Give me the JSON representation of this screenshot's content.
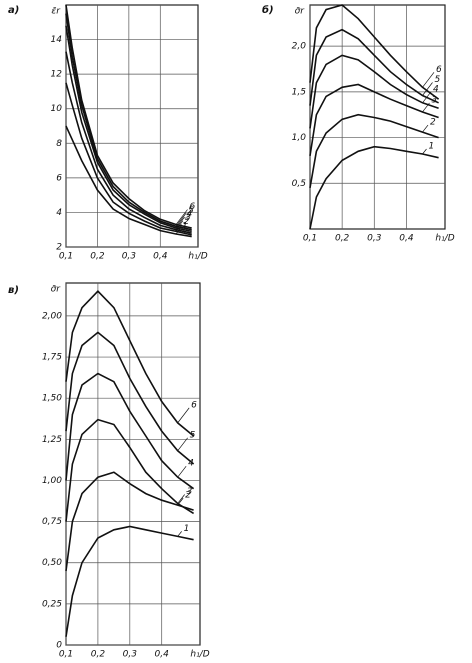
{
  "chart_data": [
    {
      "type": "line",
      "panel": "a)",
      "ylabel": "ε̄r",
      "xlabel": "h₁/D",
      "x": [
        0.1,
        0.12,
        0.15,
        0.2,
        0.25,
        0.3,
        0.35,
        0.4,
        0.45,
        0.5
      ],
      "xlim": [
        0.1,
        0.52
      ],
      "ylim": [
        2,
        16
      ],
      "grid": true,
      "xticks": [
        {
          "value": 0.1,
          "label": "0,1"
        },
        {
          "value": 0.2,
          "label": "0,2"
        },
        {
          "value": 0.3,
          "label": "0,3"
        },
        {
          "value": 0.4,
          "label": "0,4"
        }
      ],
      "yticks": [
        2,
        4,
        6,
        8,
        10,
        12,
        14
      ],
      "series": [
        {
          "name": "1",
          "color": "#111",
          "values": [
            9,
            8.2,
            7.0,
            5.3,
            4.2,
            3.65,
            3.3,
            2.95,
            2.75,
            2.6
          ]
        },
        {
          "name": "2",
          "color": "#111",
          "values": [
            11.5,
            10.2,
            8.3,
            6.0,
            4.6,
            3.95,
            3.5,
            3.1,
            2.9,
            2.7
          ]
        },
        {
          "name": "3",
          "color": "#111",
          "values": [
            13.3,
            11.5,
            9.2,
            6.5,
            5.0,
            4.2,
            3.7,
            3.25,
            3.0,
            2.8
          ]
        },
        {
          "name": "4",
          "color": "#111",
          "values": [
            14.8,
            12.5,
            9.8,
            6.9,
            5.3,
            4.45,
            3.9,
            3.4,
            3.1,
            2.9
          ]
        },
        {
          "name": "5",
          "color": "#111",
          "values": [
            15.5,
            13,
            10.2,
            7.1,
            5.5,
            4.6,
            4.0,
            3.5,
            3.2,
            3.0
          ]
        },
        {
          "name": "6",
          "color": "#111",
          "values": [
            16,
            13.5,
            10.5,
            7.3,
            5.7,
            4.8,
            4.1,
            3.6,
            3.3,
            3.1
          ]
        }
      ]
    },
    {
      "type": "line",
      "panel": "б)",
      "ylabel": "σ̄r",
      "xlabel": "h₁/D",
      "x": [
        0.1,
        0.12,
        0.15,
        0.2,
        0.25,
        0.3,
        0.35,
        0.4,
        0.45,
        0.5
      ],
      "xlim": [
        0.1,
        0.52
      ],
      "ylim": [
        0,
        2.45
      ],
      "grid": true,
      "xticks": [
        {
          "value": 0.1,
          "label": "0,1"
        },
        {
          "value": 0.2,
          "label": "0,2"
        },
        {
          "value": 0.3,
          "label": "0,3"
        },
        {
          "value": 0.4,
          "label": "0,4"
        }
      ],
      "yticks": [
        {
          "value": 0.5,
          "label": "0,5"
        },
        {
          "value": 1.0,
          "label": "1,0"
        },
        {
          "value": 1.5,
          "label": "1,5"
        },
        {
          "value": 2.0,
          "label": "2,0"
        }
      ],
      "series": [
        {
          "name": "1",
          "color": "#111",
          "values": [
            0.0,
            0.35,
            0.55,
            0.75,
            0.85,
            0.9,
            0.88,
            0.85,
            0.82,
            0.78
          ]
        },
        {
          "name": "2",
          "color": "#111",
          "values": [
            0.45,
            0.85,
            1.05,
            1.2,
            1.25,
            1.22,
            1.18,
            1.12,
            1.06,
            1.0
          ]
        },
        {
          "name": "3",
          "color": "#111",
          "values": [
            0.8,
            1.25,
            1.45,
            1.55,
            1.58,
            1.5,
            1.42,
            1.35,
            1.28,
            1.22
          ]
        },
        {
          "name": "4",
          "color": "#111",
          "values": [
            1.1,
            1.6,
            1.8,
            1.9,
            1.85,
            1.72,
            1.58,
            1.47,
            1.38,
            1.32
          ]
        },
        {
          "name": "5",
          "color": "#111",
          "values": [
            1.35,
            1.9,
            2.1,
            2.18,
            2.08,
            1.9,
            1.72,
            1.58,
            1.46,
            1.38
          ]
        },
        {
          "name": "6",
          "color": "#111",
          "values": [
            1.6,
            2.2,
            2.4,
            2.45,
            2.3,
            2.1,
            1.9,
            1.72,
            1.55,
            1.42
          ]
        }
      ]
    },
    {
      "type": "line",
      "panel": "в)",
      "ylabel": "σ̄r",
      "xlabel": "h₁/D",
      "x": [
        0.1,
        0.12,
        0.15,
        0.2,
        0.25,
        0.3,
        0.35,
        0.4,
        0.45,
        0.5
      ],
      "xlim": [
        0.1,
        0.52
      ],
      "ylim": [
        0,
        2.2
      ],
      "grid": true,
      "xticks": [
        {
          "value": 0.1,
          "label": "0,1"
        },
        {
          "value": 0.2,
          "label": "0,2"
        },
        {
          "value": 0.3,
          "label": "0,3"
        },
        {
          "value": 0.4,
          "label": "0,4"
        }
      ],
      "yticks": [
        0,
        {
          "value": 0.25,
          "label": "0,25"
        },
        {
          "value": 0.5,
          "label": "0,50"
        },
        {
          "value": 0.75,
          "label": "0,75"
        },
        {
          "value": 1.0,
          "label": "1,00"
        },
        {
          "value": 1.25,
          "label": "1,25"
        },
        {
          "value": 1.5,
          "label": "1,50"
        },
        {
          "value": 1.75,
          "label": "1,75"
        },
        {
          "value": 2.0,
          "label": "2,00"
        }
      ],
      "series": [
        {
          "name": "1",
          "color": "#111",
          "values": [
            0.05,
            0.3,
            0.5,
            0.65,
            0.7,
            0.72,
            0.7,
            0.68,
            0.66,
            0.64
          ]
        },
        {
          "name": "2",
          "color": "#111",
          "values": [
            0.45,
            0.75,
            0.92,
            1.02,
            1.05,
            0.98,
            0.92,
            0.88,
            0.85,
            0.82
          ]
        },
        {
          "name": "3",
          "color": "#111",
          "values": [
            0.75,
            1.1,
            1.28,
            1.37,
            1.34,
            1.2,
            1.05,
            0.95,
            0.86,
            0.8
          ]
        },
        {
          "name": "4",
          "color": "#111",
          "values": [
            1.0,
            1.4,
            1.58,
            1.65,
            1.6,
            1.42,
            1.27,
            1.12,
            1.02,
            0.95
          ]
        },
        {
          "name": "5",
          "color": "#111",
          "values": [
            1.3,
            1.65,
            1.82,
            1.9,
            1.82,
            1.62,
            1.45,
            1.3,
            1.18,
            1.1
          ]
        },
        {
          "name": "6",
          "color": "#111",
          "values": [
            1.6,
            1.9,
            2.05,
            2.15,
            2.05,
            1.85,
            1.65,
            1.48,
            1.35,
            1.27
          ]
        }
      ]
    }
  ]
}
